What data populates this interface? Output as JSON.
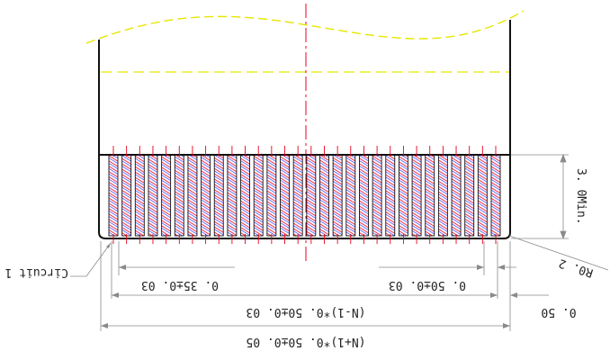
{
  "drawing": {
    "pitch_label": "(N-1)*0. 50±0. 03",
    "overall_label": "(N+1)*0. 50±0. 05",
    "finger_width_label": "0. 35±0. 03",
    "edge_gap_label": "0. 50±0. 03",
    "offset_label": "0. 50",
    "radius_label": "R0. 2",
    "min_height_label": "3. 0Min.",
    "circuit_label": "Circuit 1",
    "contact_count": 30,
    "colors": {
      "outline": "#111111",
      "centerline": "#e8001c",
      "pad_tick": "#e8001c",
      "hatch_blue": "#1a1aff",
      "hatch_red": "#e8001c",
      "break_line": "#e6e600",
      "dim_line": "#8a8a8a"
    }
  }
}
